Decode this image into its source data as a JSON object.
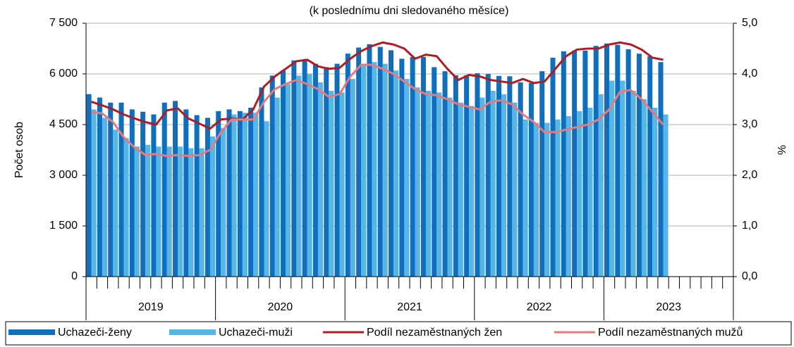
{
  "chart_data": {
    "type": "bar",
    "subtitle": "(k poslednímu dni sledovaného měsíce)",
    "ylabel": "Počet osob",
    "y2label": "%",
    "categories": [
      null,
      null,
      null,
      null,
      null,
      null,
      null,
      null,
      null,
      null,
      null,
      null,
      null,
      null,
      null,
      null,
      null,
      null,
      null,
      null,
      null,
      null,
      null,
      null,
      null,
      null,
      null,
      null,
      null,
      null,
      null,
      null,
      null,
      null,
      null,
      null,
      null,
      null,
      null,
      null,
      null,
      null,
      null,
      null,
      null,
      null,
      null,
      null,
      null,
      null,
      null,
      null,
      null,
      null,
      null,
      null,
      null,
      null,
      null,
      null
    ],
    "year_groups": [
      "2019",
      "2020",
      "2021",
      "2022",
      "2023"
    ],
    "ylim": [
      0,
      7500
    ],
    "yticks": [
      {
        "value": 0,
        "label": "0"
      },
      {
        "value": 1500,
        "label": "1 500"
      },
      {
        "value": 3000,
        "label": "3 000"
      },
      {
        "value": 4500,
        "label": "4 500"
      },
      {
        "value": 6000,
        "label": "6 000"
      },
      {
        "value": 7500,
        "label": "7 500"
      }
    ],
    "y2lim": [
      0,
      5
    ],
    "y2ticks": [
      {
        "value": 0,
        "label": "0,0"
      },
      {
        "value": 1,
        "label": "1,0"
      },
      {
        "value": 2,
        "label": "2,0"
      },
      {
        "value": 3,
        "label": "3,0"
      },
      {
        "value": 4,
        "label": "4,0"
      },
      {
        "value": 5,
        "label": "5,0"
      }
    ],
    "grid": true,
    "series": [
      {
        "name": "Uchazeči-ženy",
        "kind": "bar",
        "color": "#0f6fbd",
        "values": [
          5400,
          5300,
          5150,
          5150,
          4950,
          4880,
          4800,
          5150,
          5200,
          4950,
          4780,
          4700,
          4900,
          4950,
          4900,
          5000,
          5600,
          5950,
          6100,
          6400,
          6420,
          6300,
          6200,
          6300,
          6600,
          6780,
          6880,
          6800,
          6700,
          6450,
          6500,
          6500,
          6200,
          6080,
          5960,
          5960,
          6020,
          6000,
          5940,
          5930,
          5750,
          5730,
          6080,
          6480,
          6670,
          6690,
          6690,
          6830,
          6900,
          6860,
          6730,
          6600,
          6520,
          6350,
          null,
          null,
          null,
          null,
          null,
          null
        ]
      },
      {
        "name": "Uchazeči-muži",
        "kind": "bar",
        "color": "#55b6ea",
        "values": [
          4950,
          4700,
          4350,
          4100,
          3850,
          3900,
          3850,
          3850,
          3850,
          3800,
          3800,
          4150,
          4400,
          4800,
          4850,
          4850,
          4600,
          5300,
          5700,
          5950,
          6000,
          5750,
          5500,
          5450,
          5850,
          6300,
          6350,
          6300,
          6100,
          5850,
          5600,
          5500,
          5450,
          5300,
          5150,
          5050,
          5300,
          5500,
          5400,
          5150,
          4650,
          4550,
          4550,
          4650,
          4750,
          4900,
          5000,
          5400,
          5800,
          5800,
          5500,
          5250,
          5000,
          4800,
          null,
          null,
          null,
          null,
          null,
          null
        ]
      },
      {
        "name": "Podíl nezaměstnaných žen",
        "kind": "line",
        "axis": "y2",
        "color": "#b01c24",
        "values": [
          3.45,
          3.38,
          3.3,
          3.2,
          3.12,
          3.05,
          3.0,
          3.28,
          3.32,
          3.12,
          3.02,
          2.92,
          3.1,
          3.12,
          3.1,
          3.3,
          3.75,
          3.95,
          4.1,
          4.25,
          4.28,
          4.15,
          4.1,
          4.12,
          4.3,
          4.45,
          4.55,
          4.62,
          4.58,
          4.5,
          4.3,
          4.38,
          4.35,
          4.1,
          3.88,
          3.98,
          3.95,
          3.88,
          3.85,
          3.82,
          3.9,
          3.82,
          3.85,
          4.1,
          4.35,
          4.48,
          4.5,
          4.5,
          4.58,
          4.62,
          4.58,
          4.48,
          4.32,
          4.28,
          null,
          null,
          null,
          null,
          null,
          null
        ]
      },
      {
        "name": "Podíl nezaměstnaných mužů",
        "kind": "line",
        "axis": "y2",
        "color": "#e87a7e",
        "values": [
          3.25,
          3.22,
          3.05,
          2.75,
          2.55,
          2.4,
          2.42,
          2.38,
          2.4,
          2.38,
          2.4,
          2.5,
          2.85,
          3.1,
          3.1,
          3.1,
          3.45,
          3.7,
          3.8,
          3.88,
          3.8,
          3.7,
          3.55,
          3.6,
          3.95,
          4.18,
          4.18,
          4.1,
          4.0,
          3.85,
          3.7,
          3.6,
          3.58,
          3.5,
          3.4,
          3.35,
          3.3,
          3.45,
          3.48,
          3.4,
          3.2,
          3.05,
          2.85,
          2.85,
          2.9,
          2.95,
          3.0,
          3.1,
          3.3,
          3.65,
          3.68,
          3.5,
          3.25,
          3.0,
          null,
          null,
          null,
          null,
          null,
          null
        ]
      }
    ]
  }
}
